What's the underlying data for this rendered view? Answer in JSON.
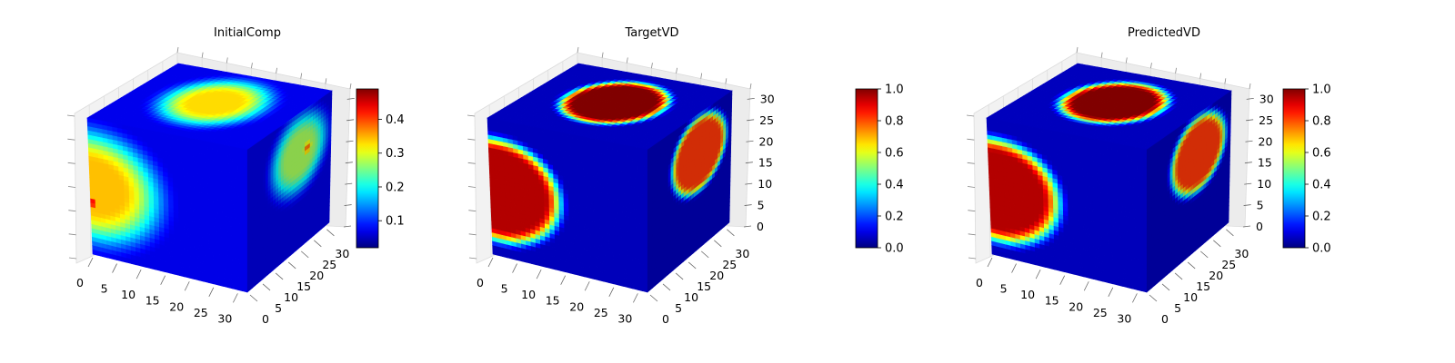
{
  "chart_data": [
    {
      "type": "heatmap",
      "subtype": "3d-voxel-cube",
      "title": "InitialComp",
      "colormap": "jet",
      "axes": {
        "x": {
          "range": [
            0,
            32
          ],
          "ticks": [
            "0",
            "5",
            "10",
            "15",
            "20",
            "25",
            "30"
          ]
        },
        "y": {
          "range": [
            0,
            32
          ],
          "ticks": [
            "0",
            "5",
            "10",
            "15",
            "20",
            "25",
            "30"
          ]
        },
        "z": {
          "range": [
            0,
            32
          ],
          "ticks": []
        }
      },
      "colorbar": {
        "range": [
          0.02,
          0.49
        ],
        "ticks": [
          "0.1",
          "0.2",
          "0.3",
          "0.4"
        ],
        "tick_values": [
          0.1,
          0.2,
          0.3,
          0.4
        ]
      },
      "blobs": [
        {
          "face": "top",
          "center": [
            0.55,
            0.5
          ],
          "radius": [
            0.36,
            0.3
          ],
          "peak": 0.33,
          "plateau": 0.2,
          "width": 0.55
        },
        {
          "face": "front",
          "center": [
            0.02,
            0.5
          ],
          "radius": [
            0.42,
            0.4
          ],
          "peak": 0.36,
          "plateau": 0.15,
          "width": 0.55
        },
        {
          "face": "front",
          "center": [
            0.0,
            0.62
          ],
          "radius": [
            0.08,
            0.08
          ],
          "peak": 0.47,
          "plateau": 0.0,
          "width": 1.0
        },
        {
          "face": "side",
          "center": [
            0.62,
            0.3
          ],
          "radius": [
            0.33,
            0.28
          ],
          "peak": 0.33,
          "plateau": 0.2,
          "width": 0.55
        },
        {
          "face": "side",
          "center": [
            0.72,
            0.3
          ],
          "radius": [
            0.08,
            0.07
          ],
          "peak": 0.47,
          "plateau": 0.0,
          "width": 1.0
        }
      ],
      "background": 0.07
    },
    {
      "type": "heatmap",
      "subtype": "3d-voxel-cube",
      "title": "TargetVD",
      "colormap": "jet",
      "axes": {
        "x": {
          "range": [
            0,
            32
          ],
          "ticks": [
            "0",
            "5",
            "10",
            "15",
            "20",
            "25",
            "30"
          ]
        },
        "y": {
          "range": [
            0,
            32
          ],
          "ticks": [
            "0",
            "5",
            "10",
            "15",
            "20",
            "25",
            "30"
          ]
        },
        "z": {
          "range": [
            0,
            32
          ],
          "ticks": [
            "0",
            "5",
            "10",
            "15",
            "20",
            "25",
            "30"
          ]
        }
      },
      "colorbar": {
        "range": [
          0.0,
          1.0
        ],
        "ticks": [
          "0.0",
          "0.2",
          "0.4",
          "0.6",
          "0.8",
          "1.0"
        ],
        "tick_values": [
          0.0,
          0.2,
          0.4,
          0.6,
          0.8,
          1.0
        ]
      },
      "blobs": [
        {
          "face": "top",
          "center": [
            0.55,
            0.5
          ],
          "radius": [
            0.34,
            0.3
          ],
          "peak": 1.0,
          "plateau": 0.8,
          "width": 0.25
        },
        {
          "face": "front",
          "center": [
            0.05,
            0.52
          ],
          "radius": [
            0.4,
            0.38
          ],
          "peak": 1.0,
          "plateau": 0.8,
          "width": 0.25
        },
        {
          "face": "side",
          "center": [
            0.62,
            0.3
          ],
          "radius": [
            0.33,
            0.28
          ],
          "peak": 1.0,
          "plateau": 0.8,
          "width": 0.25
        }
      ],
      "background": 0.06
    },
    {
      "type": "heatmap",
      "subtype": "3d-voxel-cube",
      "title": "PredictedVD",
      "colormap": "jet",
      "axes": {
        "x": {
          "range": [
            0,
            32
          ],
          "ticks": [
            "0",
            "5",
            "10",
            "15",
            "20",
            "25",
            "30"
          ]
        },
        "y": {
          "range": [
            0,
            32
          ],
          "ticks": [
            "0",
            "5",
            "10",
            "15",
            "20",
            "25",
            "30"
          ]
        },
        "z": {
          "range": [
            0,
            32
          ],
          "ticks": [
            "0",
            "5",
            "10",
            "15",
            "20",
            "25",
            "30"
          ]
        }
      },
      "colorbar": {
        "range": [
          0.0,
          1.0
        ],
        "ticks": [
          "0.0",
          "0.2",
          "0.4",
          "0.6",
          "0.8",
          "1.0"
        ],
        "tick_values": [
          0.0,
          0.2,
          0.4,
          0.6,
          0.8,
          1.0
        ]
      },
      "blobs": [
        {
          "face": "top",
          "center": [
            0.55,
            0.5
          ],
          "radius": [
            0.33,
            0.3
          ],
          "peak": 1.0,
          "plateau": 0.8,
          "width": 0.28
        },
        {
          "face": "front",
          "center": [
            0.05,
            0.52
          ],
          "radius": [
            0.4,
            0.38
          ],
          "peak": 1.0,
          "plateau": 0.8,
          "width": 0.28
        },
        {
          "face": "side",
          "center": [
            0.62,
            0.3
          ],
          "radius": [
            0.33,
            0.28
          ],
          "peak": 1.0,
          "plateau": 0.8,
          "width": 0.28
        }
      ],
      "background": 0.06
    }
  ]
}
